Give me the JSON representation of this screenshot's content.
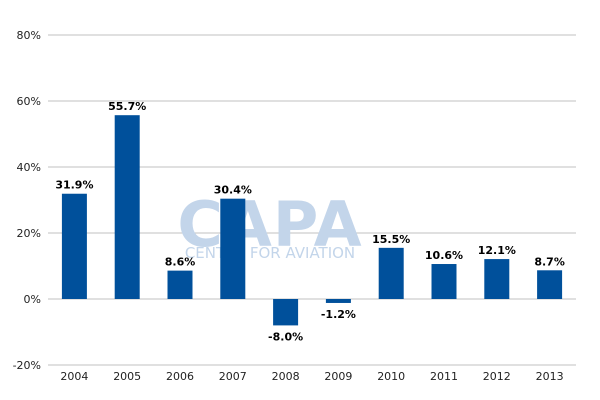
{
  "chart_data": {
    "type": "bar",
    "categories": [
      "2004",
      "2005",
      "2006",
      "2007",
      "2008",
      "2009",
      "2010",
      "2011",
      "2012",
      "2013"
    ],
    "values": [
      31.9,
      55.7,
      8.6,
      30.4,
      -8.0,
      -1.2,
      15.5,
      10.6,
      12.1,
      8.7
    ],
    "data_labels": [
      "31.9%",
      "55.7%",
      "8.6%",
      "30.4%",
      "-8.0%",
      "-1.2%",
      "15.5%",
      "10.6%",
      "12.1%",
      "8.7%"
    ],
    "yticks": [
      -20,
      0,
      20,
      40,
      60,
      80
    ],
    "ytick_labels": [
      "-20%",
      "0%",
      "20%",
      "40%",
      "60%",
      "80%"
    ],
    "ylim": [
      -20,
      80
    ],
    "grid": "horizontal",
    "bar_color": "#00509b",
    "title": "",
    "xlabel": "",
    "ylabel": ""
  },
  "watermark": {
    "text": "CAPA",
    "subtext": "CENTRE FOR AVIATION"
  }
}
